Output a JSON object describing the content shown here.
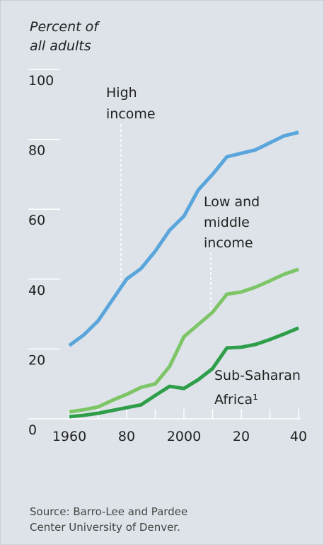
{
  "chart_data": {
    "type": "line",
    "ylabel": [
      "Percent of",
      "all adults"
    ],
    "x": [
      1960,
      1965,
      1970,
      1975,
      1980,
      1985,
      1990,
      1995,
      2000,
      2005,
      2010,
      2015,
      2020,
      2025,
      2030,
      2035,
      2040
    ],
    "series": [
      {
        "name": [
          "High",
          "income"
        ],
        "color": "#5aa5dc",
        "values": [
          21,
          24,
          28,
          34,
          40,
          43,
          48,
          54,
          58,
          65.5,
          70,
          75,
          76,
          77,
          79,
          81,
          82
        ]
      },
      {
        "name": [
          "Low and",
          "middle",
          "income"
        ],
        "color": "#7dc566",
        "values": [
          2,
          2.6,
          3.4,
          5.3,
          7,
          9,
          10,
          15,
          23.5,
          27,
          30.5,
          35.7,
          36.3,
          37.7,
          39.5,
          41.4,
          42.8
        ]
      },
      {
        "name": [
          "Sub-Saharan",
          "Africa¹"
        ],
        "color": "#2e9e4a",
        "values": [
          0.6,
          1,
          1.6,
          2.4,
          3.2,
          4,
          6.7,
          9.3,
          8.7,
          11.2,
          14.4,
          20.3,
          20.5,
          21.3,
          22.7,
          24.3,
          26
        ]
      }
    ],
    "xlim": [
      1960,
      2040
    ],
    "xticks": [
      1960,
      {
        "value": 1980,
        "label": "80"
      },
      2000,
      {
        "value": 2020,
        "label": "20"
      },
      {
        "value": 2040,
        "label": "40"
      }
    ],
    "ylim": [
      0,
      100
    ],
    "yticks": [
      0,
      20,
      40,
      60,
      80,
      100
    ],
    "source": [
      "Source: Barro-Lee and Pardee",
      "Center University of Denver."
    ]
  }
}
